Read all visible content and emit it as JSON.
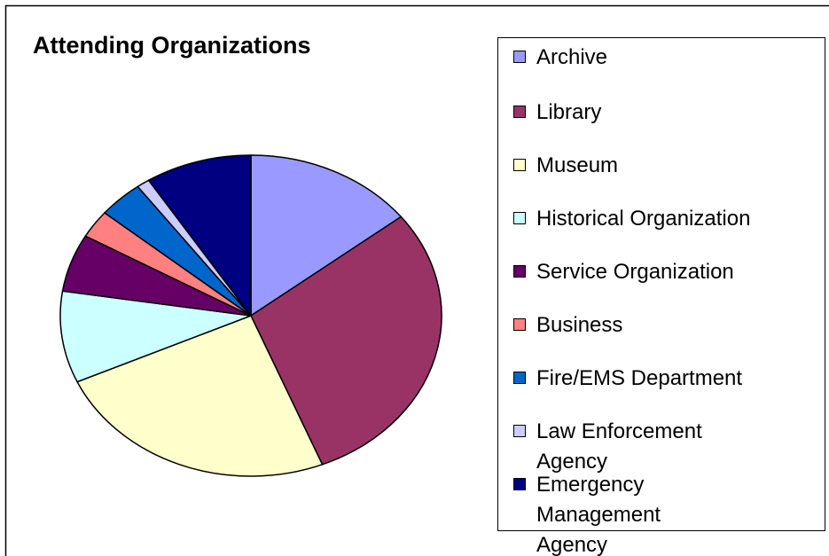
{
  "chart_data": {
    "type": "pie",
    "title": "Attending Organizations",
    "categories": [
      "Archive",
      "Library",
      "Museum",
      "Historical Organization",
      "Service Organization",
      "Business",
      "Fire/EMS Department",
      "Law  Enforcement Agency",
      "Emergency Management Agency"
    ],
    "values": [
      14.4,
      29.4,
      24.3,
      9.2,
      5.8,
      2.8,
      3.8,
      1.1,
      9.0
    ],
    "colors": [
      "#9999ff",
      "#993366",
      "#ffffcc",
      "#ccffff",
      "#660066",
      "#ff8080",
      "#0066cc",
      "#ccccff",
      "#000080"
    ],
    "legend": "right"
  }
}
